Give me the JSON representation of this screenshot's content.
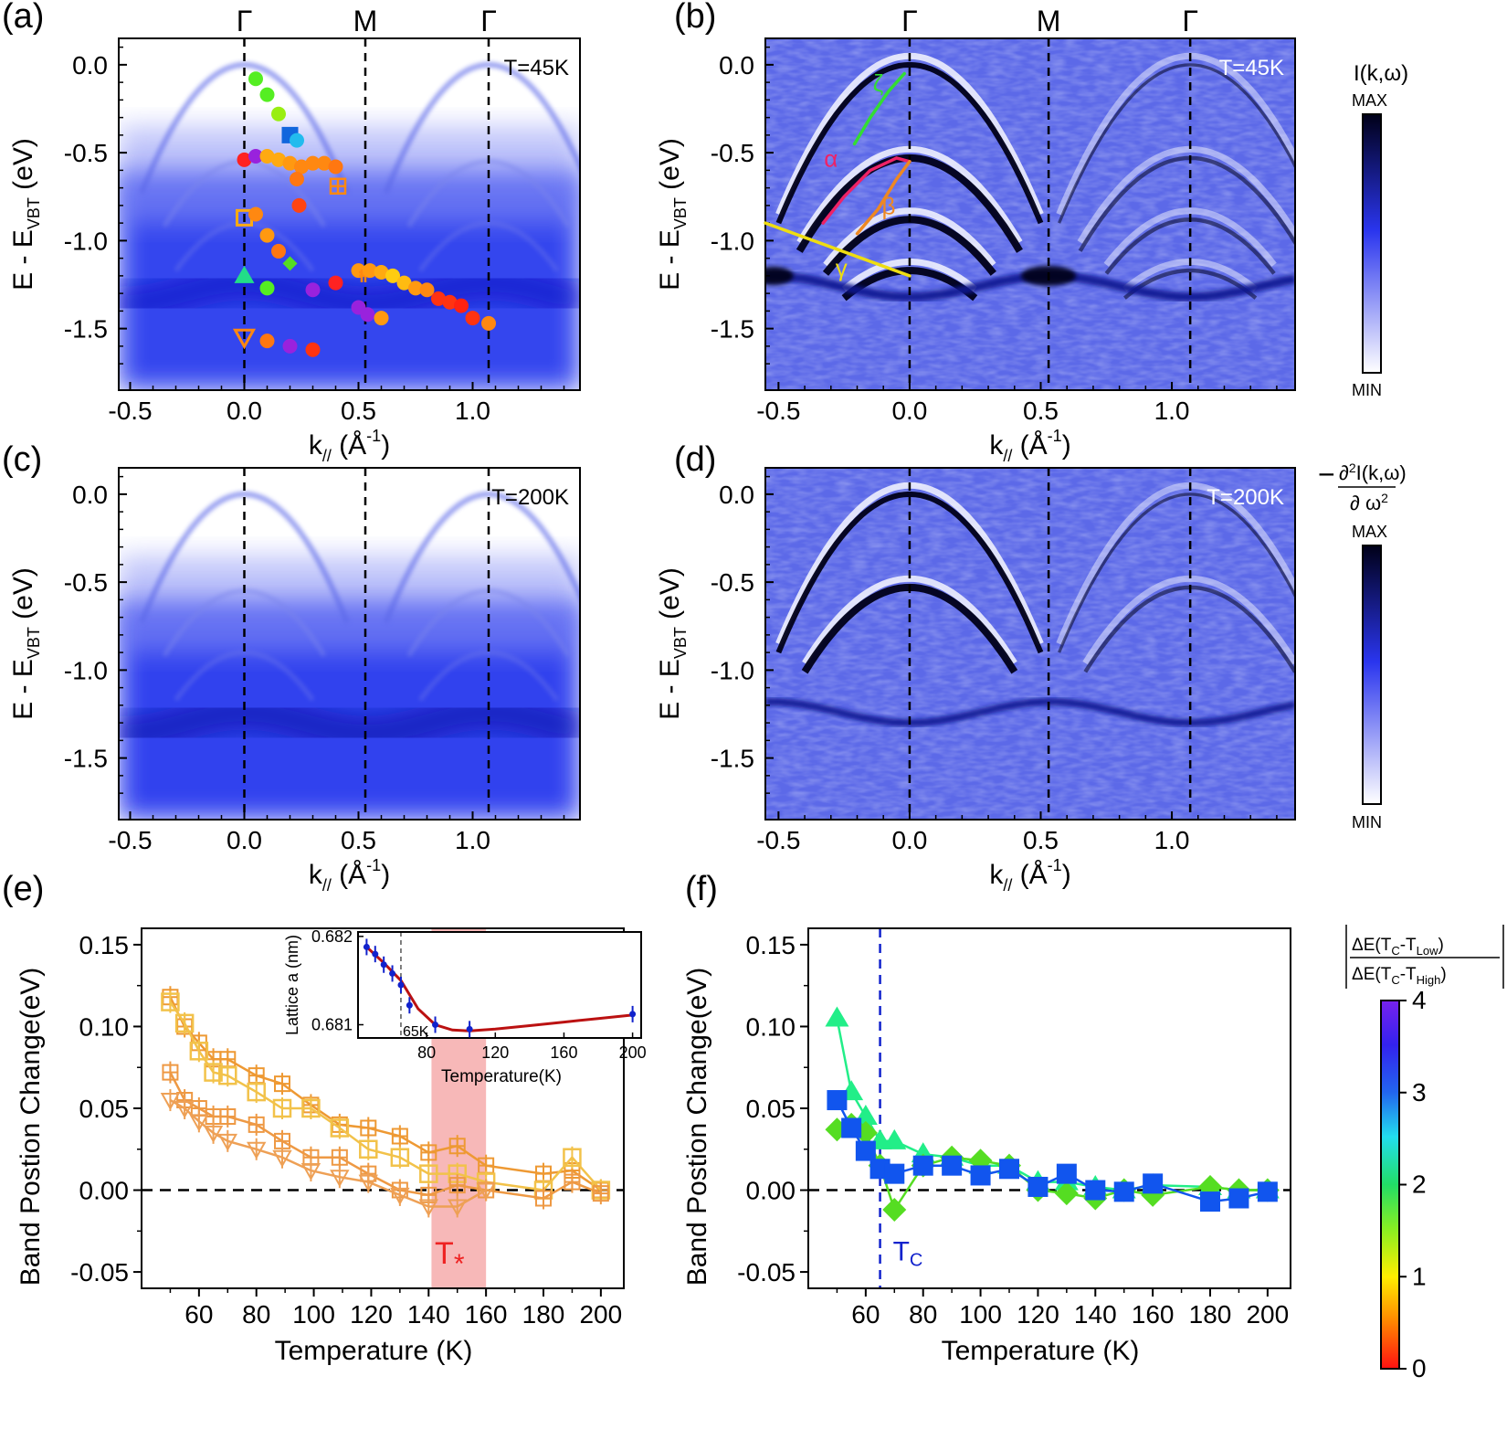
{
  "chart_data": [
    {
      "id": "a",
      "type": "heatmap",
      "panel_label": "(a)",
      "annotation": "T=45K",
      "xlabel_main": "k",
      "xlabel_sub": "//",
      "xlabel_unit": " (Å",
      "xlabel_sup": "-1",
      "xlabel_close": ")",
      "ylabel_main": "E - E",
      "ylabel_sub": "VBT",
      "ylabel_unit": " (eV)",
      "xlim": [
        -0.55,
        1.47
      ],
      "ylim": [
        -1.85,
        0.15
      ],
      "xticks": [
        "-0.5",
        "0.0",
        "0.5",
        "1.0"
      ],
      "yticks": [
        "0.0",
        "-0.5",
        "-1.0",
        "-1.5"
      ],
      "symmetry_points": [
        {
          "k": 0.0,
          "label": "Γ"
        },
        {
          "k": 0.53,
          "label": "M"
        },
        {
          "k": 1.07,
          "label": "Γ"
        }
      ],
      "markers": [
        {
          "k": 0.05,
          "e": -0.08,
          "color": "#55ee22",
          "shape": "circle"
        },
        {
          "k": 0.1,
          "e": -0.17,
          "color": "#55ee22",
          "shape": "circle"
        },
        {
          "k": 0.15,
          "e": -0.28,
          "color": "#99ee11",
          "shape": "circle"
        },
        {
          "k": 0.2,
          "e": -0.4,
          "color": "#1166dd",
          "shape": "square"
        },
        {
          "k": 0.23,
          "e": -0.43,
          "color": "#22bbee",
          "shape": "circle"
        },
        {
          "k": 0.0,
          "e": -0.54,
          "color": "#ff2222",
          "shape": "circle"
        },
        {
          "k": 0.05,
          "e": -0.52,
          "color": "#9922dd",
          "shape": "circle"
        },
        {
          "k": 0.1,
          "e": -0.52,
          "color": "#ffaa11",
          "shape": "circle"
        },
        {
          "k": 0.15,
          "e": -0.54,
          "color": "#ffaa11",
          "shape": "circle"
        },
        {
          "k": 0.2,
          "e": -0.56,
          "color": "#ff9911",
          "shape": "circle"
        },
        {
          "k": 0.25,
          "e": -0.58,
          "color": "#ff8811",
          "shape": "circle"
        },
        {
          "k": 0.3,
          "e": -0.56,
          "color": "#ff8811",
          "shape": "circle"
        },
        {
          "k": 0.35,
          "e": -0.56,
          "color": "#ff8811",
          "shape": "circle"
        },
        {
          "k": 0.4,
          "e": -0.58,
          "color": "#ff7711",
          "shape": "circle"
        },
        {
          "k": 0.23,
          "e": -0.65,
          "color": "#ff7711",
          "shape": "circle"
        },
        {
          "k": 0.24,
          "e": -0.8,
          "color": "#ff4411",
          "shape": "circle"
        },
        {
          "k": 0.41,
          "e": -0.69,
          "color": "#ff8811",
          "shape": "hatched-square"
        },
        {
          "k": 0.0,
          "e": -0.87,
          "color": "#ffaa11",
          "shape": "open-square"
        },
        {
          "k": 0.05,
          "e": -0.85,
          "color": "#ff8811",
          "shape": "circle"
        },
        {
          "k": 0.1,
          "e": -0.97,
          "color": "#ff9911",
          "shape": "circle"
        },
        {
          "k": 0.15,
          "e": -1.06,
          "color": "#ff7711",
          "shape": "circle"
        },
        {
          "k": 0.2,
          "e": -1.13,
          "color": "#55dd22",
          "shape": "diamond"
        },
        {
          "k": 0.0,
          "e": -1.2,
          "color": "#22dd88",
          "shape": "triangle"
        },
        {
          "k": 0.1,
          "e": -1.27,
          "color": "#55ee22",
          "shape": "circle"
        },
        {
          "k": 0.3,
          "e": -1.28,
          "color": "#9922dd",
          "shape": "circle"
        },
        {
          "k": 0.4,
          "e": -1.24,
          "color": "#ff2222",
          "shape": "circle"
        },
        {
          "k": 0.5,
          "e": -1.17,
          "color": "#ff9911",
          "shape": "circle"
        },
        {
          "k": 0.53,
          "e": -1.2,
          "color": "#ff8811",
          "shape": "plus"
        },
        {
          "k": 0.55,
          "e": -1.17,
          "color": "#ff9911",
          "shape": "circle"
        },
        {
          "k": 0.6,
          "e": -1.18,
          "color": "#ffaa11",
          "shape": "circle"
        },
        {
          "k": 0.65,
          "e": -1.2,
          "color": "#ffcc11",
          "shape": "circle"
        },
        {
          "k": 0.7,
          "e": -1.24,
          "color": "#ffbb11",
          "shape": "circle"
        },
        {
          "k": 0.75,
          "e": -1.27,
          "color": "#ff9911",
          "shape": "circle"
        },
        {
          "k": 0.8,
          "e": -1.28,
          "color": "#ff8811",
          "shape": "circle"
        },
        {
          "k": 0.85,
          "e": -1.33,
          "color": "#ff3311",
          "shape": "circle"
        },
        {
          "k": 0.9,
          "e": -1.35,
          "color": "#ff3311",
          "shape": "circle"
        },
        {
          "k": 0.95,
          "e": -1.37,
          "color": "#ff2211",
          "shape": "circle"
        },
        {
          "k": 1.0,
          "e": -1.44,
          "color": "#ff3311",
          "shape": "circle"
        },
        {
          "k": 1.07,
          "e": -1.47,
          "color": "#ff8811",
          "shape": "circle"
        },
        {
          "k": 0.5,
          "e": -1.38,
          "color": "#9922dd",
          "shape": "circle"
        },
        {
          "k": 0.54,
          "e": -1.42,
          "color": "#9922dd",
          "shape": "circle"
        },
        {
          "k": 0.6,
          "e": -1.44,
          "color": "#ff9911",
          "shape": "circle"
        },
        {
          "k": 0.0,
          "e": -1.55,
          "color": "#ff8811",
          "shape": "open-triangle-down"
        },
        {
          "k": 0.1,
          "e": -1.57,
          "color": "#ff7711",
          "shape": "circle"
        },
        {
          "k": 0.2,
          "e": -1.6,
          "color": "#9922dd",
          "shape": "circle"
        },
        {
          "k": 0.3,
          "e": -1.62,
          "color": "#ff3311",
          "shape": "circle"
        }
      ]
    },
    {
      "id": "b",
      "type": "heatmap",
      "panel_label": "(b)",
      "annotation": "T=45K",
      "xlabel_main": "k",
      "xlabel_sub": "//",
      "xlabel_unit": " (Å",
      "xlabel_sup": "-1",
      "xlabel_close": ")",
      "ylabel_main": "E - E",
      "ylabel_sub": "VBT",
      "ylabel_unit": " (eV)",
      "xlim": [
        -0.55,
        1.47
      ],
      "ylim": [
        -1.85,
        0.15
      ],
      "xticks": [
        "-0.5",
        "0.0",
        "0.5",
        "1.0"
      ],
      "yticks": [
        "0.0",
        "-0.5",
        "-1.0",
        "-1.5"
      ],
      "symmetry_points": [
        {
          "k": 0.0,
          "label": "Γ"
        },
        {
          "k": 0.53,
          "label": "M"
        },
        {
          "k": 1.07,
          "label": "Γ"
        }
      ],
      "band_labels": [
        {
          "name": "ζ",
          "color": "#33dd33",
          "k": [
            -0.21,
            -0.15,
            -0.08,
            -0.02
          ],
          "e": [
            -0.45,
            -0.3,
            -0.15,
            -0.05
          ]
        },
        {
          "name": "α",
          "color": "#ee2266",
          "k": [
            -0.33,
            -0.25,
            -0.15,
            -0.05,
            0.0
          ],
          "e": [
            -0.9,
            -0.75,
            -0.6,
            -0.53,
            -0.55
          ]
        },
        {
          "name": "β",
          "color": "#ee8822",
          "k": [
            -0.2,
            -0.12,
            -0.05,
            0.0
          ],
          "e": [
            -0.96,
            -0.82,
            -0.65,
            -0.55
          ]
        },
        {
          "name": "γ",
          "color": "#eedd11",
          "k": [
            -0.55,
            0.0
          ],
          "e": [
            -0.9,
            -1.2
          ]
        }
      ]
    },
    {
      "id": "c",
      "type": "heatmap",
      "panel_label": "(c)",
      "annotation": "T=200K",
      "xlabel_main": "k",
      "xlabel_sub": "//",
      "xlabel_unit": " (Å",
      "xlabel_sup": "-1",
      "xlabel_close": ")",
      "ylabel_main": "E - E",
      "ylabel_sub": "VBT",
      "ylabel_unit": " (eV)",
      "xlim": [
        -0.55,
        1.47
      ],
      "ylim": [
        -1.85,
        0.15
      ],
      "xticks": [
        "-0.5",
        "0.0",
        "0.5",
        "1.0"
      ],
      "yticks": [
        "0.0",
        "-0.5",
        "-1.0",
        "-1.5"
      ],
      "symmetry_points": [
        {
          "k": 0.0,
          "label": ""
        },
        {
          "k": 0.53,
          "label": ""
        },
        {
          "k": 1.07,
          "label": ""
        }
      ]
    },
    {
      "id": "d",
      "type": "heatmap",
      "panel_label": "(d)",
      "annotation": "T=200K",
      "xlabel_main": "k",
      "xlabel_sub": "//",
      "xlabel_unit": " (Å",
      "xlabel_sup": "-1",
      "xlabel_close": ")",
      "ylabel_main": "E - E",
      "ylabel_sub": "VBT",
      "ylabel_unit": " (eV)",
      "xlim": [
        -0.55,
        1.47
      ],
      "ylim": [
        -1.85,
        0.15
      ],
      "xticks": [
        "-0.5",
        "0.0",
        "0.5",
        "1.0"
      ],
      "yticks": [
        "0.0",
        "-0.5",
        "-1.0",
        "-1.5"
      ],
      "symmetry_points": [
        {
          "k": 0.0,
          "label": ""
        },
        {
          "k": 0.53,
          "label": ""
        },
        {
          "k": 1.07,
          "label": ""
        }
      ]
    },
    {
      "id": "e",
      "type": "line",
      "panel_label": "(e)",
      "xlabel": "Temperature (K)",
      "ylabel": "Band Postion Change(eV)",
      "xlim": [
        40,
        208
      ],
      "ylim": [
        -0.06,
        0.16
      ],
      "xticks": [
        "60",
        "80",
        "100",
        "120",
        "140",
        "160",
        "180",
        "200"
      ],
      "yticks": [
        "0.15",
        "0.10",
        "0.05",
        "0.00",
        "-0.05"
      ],
      "shaded_region": {
        "x": [
          141,
          160
        ],
        "color": "#f4a0a0",
        "label_main": "T",
        "label_sub": "*"
      },
      "series": [
        {
          "name": "plus-square",
          "color": "#ee9933",
          "marker": "hatched-square",
          "x": [
            50,
            55,
            60,
            65,
            70,
            80,
            89,
            99,
            109,
            119,
            130,
            140,
            150,
            160,
            180,
            190,
            200
          ],
          "y": [
            0.118,
            0.1,
            0.09,
            0.08,
            0.08,
            0.07,
            0.065,
            0.052,
            0.04,
            0.038,
            0.033,
            0.023,
            0.027,
            0.015,
            0.01,
            0.012,
            0.0
          ]
        },
        {
          "name": "open-square-yellow",
          "color": "#f2c24a",
          "marker": "open-square",
          "x": [
            50,
            55,
            60,
            65,
            70,
            80,
            89,
            99,
            109,
            119,
            130,
            140,
            150,
            160,
            180,
            190,
            200
          ],
          "y": [
            0.115,
            0.102,
            0.085,
            0.072,
            0.07,
            0.06,
            0.05,
            0.05,
            0.038,
            0.025,
            0.02,
            0.01,
            0.01,
            0.005,
            0.0,
            0.02,
            0.0
          ]
        },
        {
          "name": "hatched-square-2",
          "color": "#ee9944",
          "marker": "hatched-square",
          "x": [
            50,
            55,
            60,
            65,
            70,
            80,
            89,
            99,
            109,
            119,
            130,
            140,
            150,
            160,
            180,
            190,
            200
          ],
          "y": [
            0.072,
            0.055,
            0.05,
            0.045,
            0.045,
            0.04,
            0.03,
            0.02,
            0.02,
            0.01,
            0.0,
            -0.003,
            0.003,
            0.0,
            -0.005,
            0.005,
            -0.002
          ]
        },
        {
          "name": "open-triangle-down",
          "color": "#eea055",
          "marker": "open-triangle-down",
          "x": [
            50,
            55,
            60,
            65,
            70,
            80,
            89,
            99,
            109,
            119,
            130,
            140,
            150,
            160
          ],
          "y": [
            0.055,
            0.05,
            0.042,
            0.035,
            0.03,
            0.025,
            0.02,
            0.012,
            0.008,
            0.005,
            -0.003,
            -0.01,
            -0.01,
            0.0
          ]
        }
      ],
      "inset": {
        "xlabel": "Temperature(K)",
        "ylabel": "Lattice a (nm)",
        "xlim": [
          40,
          205
        ],
        "ylim": [
          0.68085,
          0.68205
        ],
        "xticks": [
          "80",
          "120",
          "160",
          "200"
        ],
        "yticks": [
          "0.682",
          "0.681"
        ],
        "marker_line": 65,
        "marker_label": "65K",
        "points_x": [
          45,
          50,
          55,
          60,
          65,
          70,
          85,
          105,
          200
        ],
        "points_y": [
          0.68188,
          0.6818,
          0.68168,
          0.68158,
          0.68145,
          0.68122,
          0.681,
          0.68095,
          0.68112
        ],
        "fit_x": [
          45,
          55,
          65,
          75,
          85,
          95,
          105,
          120,
          140,
          160,
          180,
          200
        ],
        "fit_y": [
          0.68188,
          0.6817,
          0.6815,
          0.68118,
          0.681,
          0.68094,
          0.68093,
          0.68095,
          0.68099,
          0.68103,
          0.68107,
          0.68111
        ]
      }
    },
    {
      "id": "f",
      "type": "line",
      "panel_label": "(f)",
      "xlabel": "Temperature (K)",
      "ylabel": "Band Postion Change(eV)",
      "xlim": [
        40,
        208
      ],
      "ylim": [
        -0.06,
        0.16
      ],
      "xticks": [
        "60",
        "80",
        "100",
        "120",
        "140",
        "160",
        "180",
        "200"
      ],
      "yticks": [
        "0.15",
        "0.10",
        "0.05",
        "0.00",
        "-0.05"
      ],
      "vline": {
        "x": 65,
        "color": "#1122cc",
        "label_main": "T",
        "label_sub": "C"
      },
      "series": [
        {
          "name": "triangle",
          "color": "#22ee88",
          "marker": "triangle",
          "x": [
            50,
            55,
            60,
            65,
            70,
            80,
            90,
            100,
            110,
            120,
            130,
            140,
            150,
            160,
            180,
            190,
            200
          ],
          "y": [
            0.105,
            0.06,
            0.045,
            0.03,
            0.03,
            0.022,
            0.02,
            0.015,
            0.015,
            0.005,
            0.005,
            0.002,
            0.0,
            0.003,
            0.002,
            0.0,
            0.0
          ]
        },
        {
          "name": "diamond",
          "color": "#55dd22",
          "marker": "diamond",
          "x": [
            50,
            55,
            60,
            65,
            70,
            80,
            90,
            100,
            110,
            120,
            130,
            140,
            150,
            160,
            180,
            190,
            200
          ],
          "y": [
            0.037,
            0.04,
            0.035,
            0.015,
            -0.012,
            0.015,
            0.02,
            0.018,
            0.015,
            0.0,
            -0.002,
            -0.005,
            0.0,
            -0.003,
            0.002,
            0.0,
            0.0
          ]
        },
        {
          "name": "square",
          "color": "#1155ee",
          "marker": "square",
          "x": [
            50,
            55,
            60,
            65,
            70,
            80,
            90,
            100,
            110,
            120,
            130,
            140,
            150,
            160,
            180,
            190,
            200
          ],
          "y": [
            0.055,
            0.038,
            0.024,
            0.013,
            0.01,
            0.015,
            0.015,
            0.009,
            0.013,
            0.002,
            0.01,
            0.0,
            -0.001,
            0.004,
            -0.007,
            -0.005,
            -0.001
          ]
        }
      ]
    }
  ],
  "colorbars": {
    "intensity": {
      "label": "I(k,ω)",
      "max_label": "MAX",
      "min_label": "MIN"
    },
    "curvature": {
      "prefix": "−",
      "numerator_main": "∂",
      "numerator_sup": "2",
      "numerator_rest": "I(k,ω)",
      "denominator_main": "∂ ω",
      "denominator_sup": "2",
      "max_label": "MAX",
      "min_label": "MIN"
    },
    "ratio": {
      "num_main": "ΔE(T",
      "num_sub1": "C",
      "num_mid": "-T",
      "num_sub2": "Low",
      "num_close": ")",
      "den_main": "ΔE(T",
      "den_sub1": "C",
      "den_mid": "-T",
      "den_sub2": "High",
      "den_close": ")",
      "ticks": [
        "4",
        "3",
        "2",
        "1",
        "0"
      ],
      "stops": [
        "#ff1111",
        "#ff8800",
        "#ffee00",
        "#88ee22",
        "#22dd66",
        "#22ddee",
        "#2266ee",
        "#3322ee",
        "#7722ee"
      ]
    }
  },
  "colors": {
    "heat_dark": "#00001a",
    "heat_blue": "#1a28ee",
    "heat_light": "#ffffff"
  }
}
